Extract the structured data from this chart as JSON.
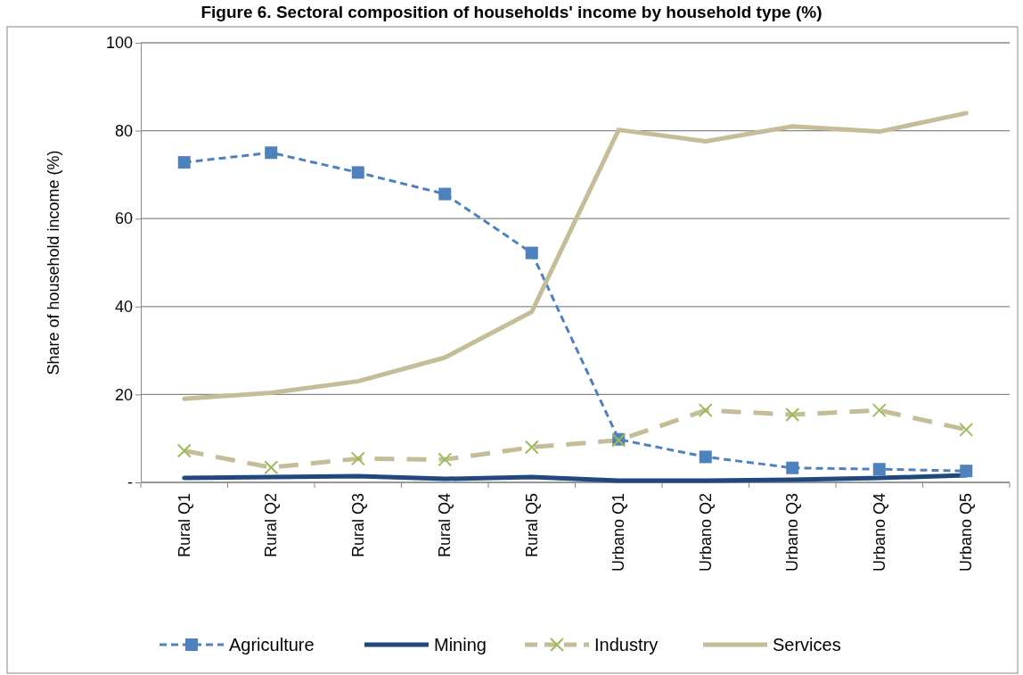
{
  "chart_data": {
    "type": "line",
    "title": "Figure 6. Sectoral composition of households' income by household type (%)",
    "ylabel": "Share of household income (%)",
    "categories": [
      "Rural Q1",
      "Rural Q2",
      "Rural Q3",
      "Rural Q4",
      "Rural Q5",
      "Urbano Q1",
      "Urbano Q2",
      "Urbano Q3",
      "Urbano Q4",
      "Urbano Q5"
    ],
    "series": [
      {
        "name": "Agriculture",
        "color": "#4f81bd",
        "marker": "square",
        "line_style": "dashed",
        "values": [
          72.8,
          75.0,
          70.5,
          65.6,
          52.2,
          9.8,
          5.8,
          3.3,
          3.0,
          2.6
        ]
      },
      {
        "name": "Mining",
        "color": "#1f497d",
        "marker": "none",
        "line_style": "solid",
        "values": [
          1.0,
          1.2,
          1.4,
          0.8,
          1.2,
          0.4,
          0.4,
          0.6,
          1.0,
          1.6
        ]
      },
      {
        "name": "Industry",
        "color": "#c4bd97",
        "marker": "cross",
        "line_style": "dashed",
        "values": [
          7.2,
          3.4,
          5.4,
          5.2,
          8.0,
          9.6,
          16.4,
          15.4,
          16.4,
          12.0
        ]
      },
      {
        "name": "Services",
        "color": "#c4bd97",
        "marker": "none",
        "line_style": "solid",
        "values": [
          19.0,
          20.4,
          23.0,
          28.4,
          38.8,
          80.2,
          77.6,
          81.0,
          79.8,
          84.0
        ]
      }
    ],
    "ylim": [
      0,
      100
    ],
    "yticks": [
      {
        "value": 0,
        "label": "-"
      },
      20,
      40,
      60,
      80,
      100
    ],
    "grid": "y",
    "legend": "bottom"
  }
}
